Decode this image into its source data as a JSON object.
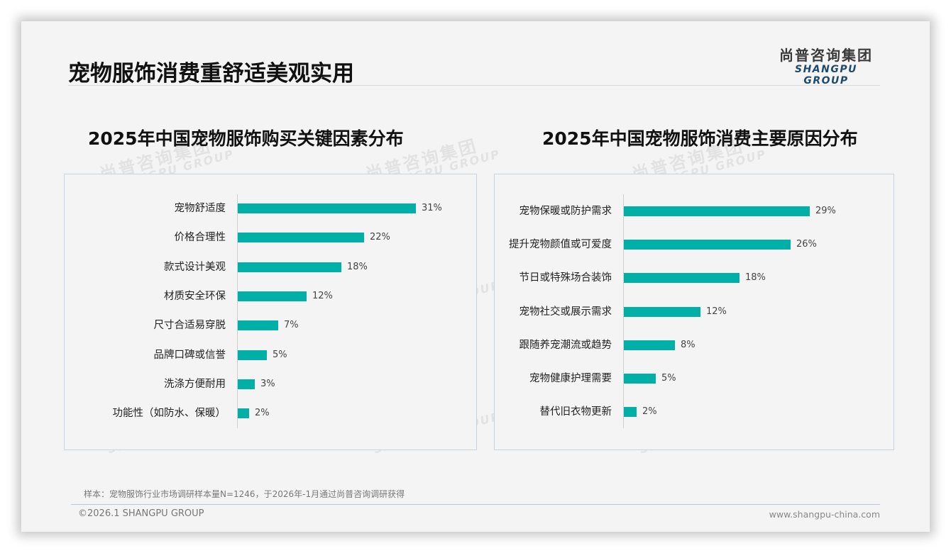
{
  "page": {
    "title": "宠物服饰消费重舒适美观实用",
    "logo": {
      "cn": "尚普咨询集团",
      "en": "SHANGPU GROUP"
    },
    "watermark": {
      "cn": "尚普咨询集团",
      "en": "SHANGPU GROUP"
    },
    "note": "样本：宠物服饰行业市场调研样本量N=1246，于2026年-1月通过尚普咨询调研获得",
    "copyright": "©2026.1 SHANGPU GROUP",
    "website": "www.shangpu-china.com",
    "colors": {
      "bar": "#00afa5",
      "panel_border": "#c5d3e0",
      "background": "#f4f4f4"
    }
  },
  "charts": {
    "left": {
      "title": "2025年中国宠物服饰购买关键因素分布",
      "rows": [
        {
          "label": "宠物舒适度",
          "value": 31,
          "display": "31%"
        },
        {
          "label": "价格合理性",
          "value": 22,
          "display": "22%"
        },
        {
          "label": "款式设计美观",
          "value": 18,
          "display": "18%"
        },
        {
          "label": "材质安全环保",
          "value": 12,
          "display": "12%"
        },
        {
          "label": "尺寸合适易穿脱",
          "value": 7,
          "display": "7%"
        },
        {
          "label": "品牌口碑或信誉",
          "value": 5,
          "display": "5%"
        },
        {
          "label": "洗涤方便耐用",
          "value": 3,
          "display": "3%"
        },
        {
          "label": "功能性（如防水、保暖）",
          "value": 2,
          "display": "2%"
        }
      ]
    },
    "right": {
      "title": "2025年中国宠物服饰消费主要原因分布",
      "rows": [
        {
          "label": "宠物保暖或防护需求",
          "value": 29,
          "display": "29%"
        },
        {
          "label": "提升宠物颜值或可爱度",
          "value": 26,
          "display": "26%"
        },
        {
          "label": "节日或特殊场合装饰",
          "value": 18,
          "display": "18%"
        },
        {
          "label": "宠物社交或展示需求",
          "value": 12,
          "display": "12%"
        },
        {
          "label": "跟随养宠潮流或趋势",
          "value": 8,
          "display": "8%"
        },
        {
          "label": "宠物健康护理需要",
          "value": 5,
          "display": "5%"
        },
        {
          "label": "替代旧衣物更新",
          "value": 2,
          "display": "2%"
        }
      ]
    }
  },
  "chart_data": [
    {
      "type": "bar",
      "orientation": "horizontal",
      "title": "2025年中国宠物服饰购买关键因素分布",
      "categories": [
        "宠物舒适度",
        "价格合理性",
        "款式设计美观",
        "材质安全环保",
        "尺寸合适易穿脱",
        "品牌口碑或信誉",
        "洗涤方便耐用",
        "功能性（如防水、保暖）"
      ],
      "values": [
        31,
        22,
        18,
        12,
        7,
        5,
        3,
        2
      ],
      "unit": "%",
      "xlabel": "",
      "ylabel": "",
      "grid": false,
      "legend": "none",
      "data_labels": true,
      "color": "#00afa5"
    },
    {
      "type": "bar",
      "orientation": "horizontal",
      "title": "2025年中国宠物服饰消费主要原因分布",
      "categories": [
        "宠物保暖或防护需求",
        "提升宠物颜值或可爱度",
        "节日或特殊场合装饰",
        "宠物社交或展示需求",
        "跟随养宠潮流或趋势",
        "宠物健康护理需要",
        "替代旧衣物更新"
      ],
      "values": [
        29,
        26,
        18,
        12,
        8,
        5,
        2
      ],
      "unit": "%",
      "xlabel": "",
      "ylabel": "",
      "grid": false,
      "legend": "none",
      "data_labels": true,
      "color": "#00afa5"
    }
  ]
}
